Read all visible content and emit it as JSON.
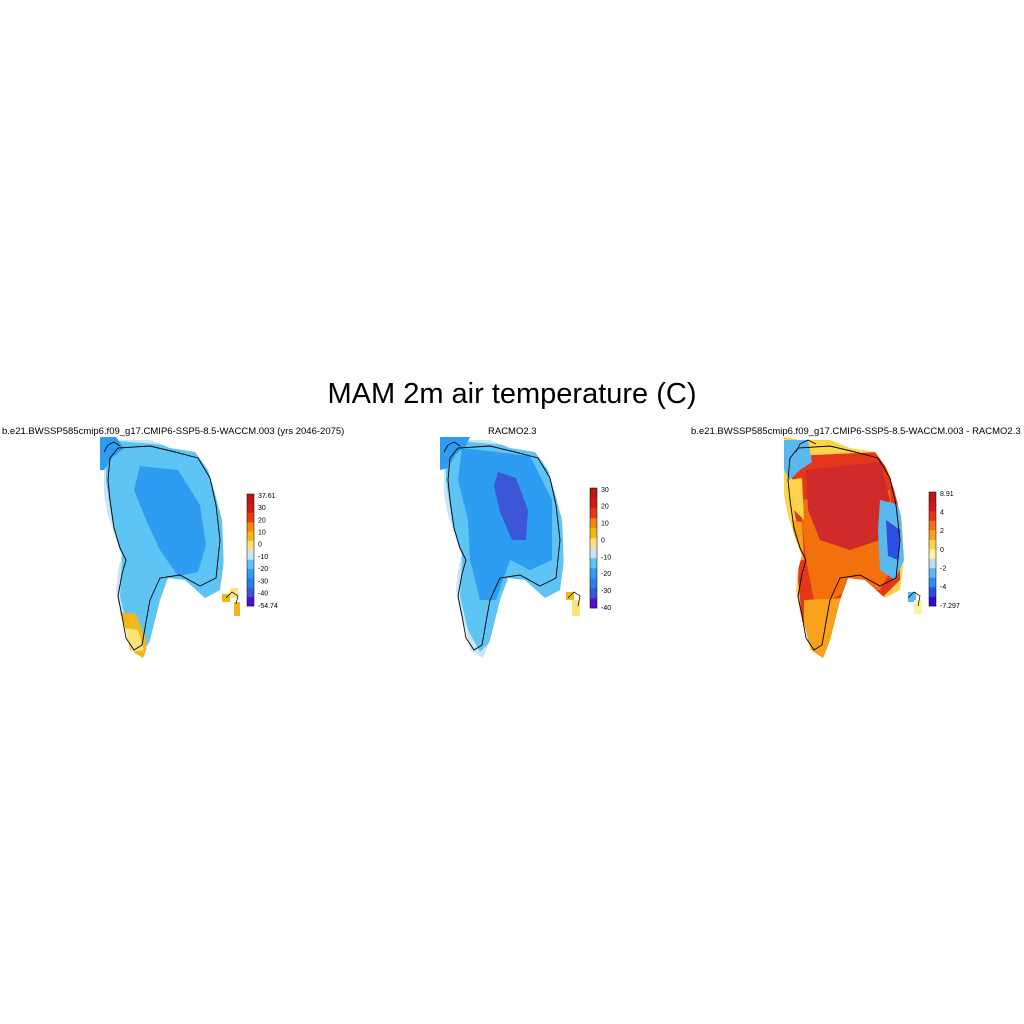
{
  "title": "MAM 2m air temperature (C)",
  "panels": [
    {
      "title": "b.e21.BWSSP585cmip6.f09_g17.CMIP6-SSP5-8.5-WACCM.003 (yrs 2046-2075)",
      "colorbar": {
        "colors": [
          "#4a14d8",
          "#3c56d8",
          "#2a7fe6",
          "#2e9cf0",
          "#5ec4f4",
          "#c8e6f6",
          "#fde27a",
          "#f2b81a",
          "#f58a0a",
          "#e83a10",
          "#d21a14",
          "#b81818"
        ],
        "labels": [
          "37.61",
          "30",
          "20",
          "10",
          "0",
          "-10",
          "-20",
          "-30",
          "-40",
          "-54.74"
        ]
      }
    },
    {
      "title": "RACMO2.3",
      "colorbar": {
        "colors": [
          "#4a14d8",
          "#3c56d8",
          "#2a7fe6",
          "#2e9cf0",
          "#5ec4f4",
          "#c8e6f6",
          "#fde27a",
          "#f2b81a",
          "#f58a0a",
          "#e83a10",
          "#d21a14",
          "#b81818"
        ],
        "labels": [
          "30",
          "20",
          "10",
          "0",
          "-10",
          "-20",
          "-30",
          "-40"
        ]
      }
    },
    {
      "title": "b.e21.BWSSP585cmip6.f09_g17.CMIP6-SSP5-8.5-WACCM.003 - RACMO2.3",
      "colorbar": {
        "colors": [
          "#2a10c8",
          "#2b4fe0",
          "#2f8ae8",
          "#5ab8ee",
          "#b8e0f0",
          "#fdf4a6",
          "#fcd44a",
          "#f7a21a",
          "#f2700e",
          "#e6361a",
          "#d11818",
          "#b51a1a"
        ],
        "labels": [
          "8.91",
          "4",
          "2",
          "0",
          "-2",
          "-4",
          "-7.297"
        ]
      }
    }
  ]
}
